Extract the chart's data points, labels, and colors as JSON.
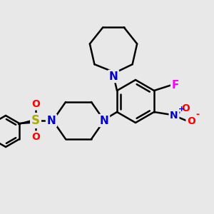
{
  "background_color": "#e8e8e8",
  "line_color": "#000000",
  "bond_width": 1.8,
  "atom_colors": {
    "N": "#0000cc",
    "O": "#ff0000",
    "F": "#ff00ff",
    "S": "#aaaa00",
    "C": "#000000"
  },
  "figsize": [
    3.0,
    3.0
  ],
  "dpi": 100
}
